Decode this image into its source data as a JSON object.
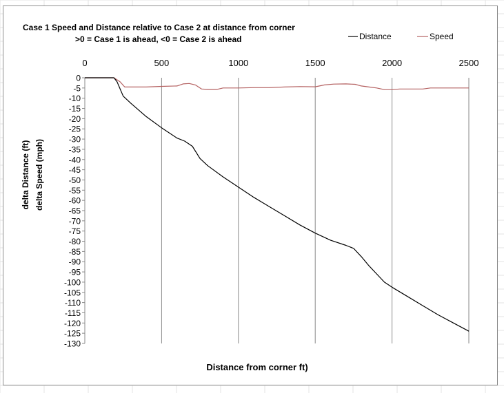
{
  "chart_data": {
    "type": "line",
    "title_line1": "Case 1 Speed and Distance relative to Case 2 at distance from corner",
    "title_line2": ">0 = Case 1 is ahead,  <0 = Case 2 is ahead",
    "xlabel": "Distance from corner  ft)",
    "ylabel_line1": "delta Distance (ft)",
    "ylabel_line2": "delta Speed  (mph)",
    "xlim": [
      0,
      2500
    ],
    "ylim": [
      -130,
      0
    ],
    "x_ticks": [
      0,
      500,
      1000,
      1500,
      2000,
      2500
    ],
    "y_ticks": [
      0,
      -5,
      -10,
      -15,
      -20,
      -25,
      -30,
      -35,
      -40,
      -45,
      -50,
      -55,
      -60,
      -65,
      -70,
      -75,
      -80,
      -85,
      -90,
      -95,
      -100,
      -105,
      -110,
      -115,
      -120,
      -125,
      -130
    ],
    "x_axis_position": "top",
    "grid": "vertical",
    "legend_position": "top-right",
    "series": [
      {
        "name": "Distance",
        "color": "#000000",
        "x": [
          0,
          190,
          210,
          250,
          300,
          400,
          500,
          600,
          650,
          700,
          750,
          800,
          900,
          1000,
          1100,
          1200,
          1300,
          1400,
          1500,
          1600,
          1700,
          1750,
          1800,
          1850,
          1900,
          1950,
          2000,
          2100,
          2200,
          2300,
          2400,
          2500
        ],
        "y": [
          0,
          0,
          -2,
          -9,
          -12.5,
          -19,
          -24.5,
          -29.5,
          -31,
          -33.5,
          -39.5,
          -43,
          -48.5,
          -53.5,
          -58.5,
          -63,
          -67.5,
          -72,
          -76,
          -79.5,
          -82,
          -83.5,
          -87.5,
          -92,
          -96,
          -100,
          -102.5,
          -107,
          -111.5,
          -116,
          -120,
          -124
        ]
      },
      {
        "name": "Speed",
        "color": "#b46060",
        "x": [
          0,
          190,
          230,
          260,
          300,
          400,
          500,
          600,
          640,
          680,
          720,
          760,
          800,
          860,
          900,
          1000,
          1100,
          1200,
          1300,
          1400,
          1500,
          1560,
          1620,
          1700,
          1760,
          1800,
          1850,
          1900,
          1950,
          2000,
          2050,
          2100,
          2200,
          2250,
          2300,
          2400,
          2500
        ],
        "y": [
          0,
          0,
          -2,
          -4.5,
          -4.5,
          -4.5,
          -4.2,
          -4,
          -3,
          -2.8,
          -3.5,
          -5.5,
          -5.7,
          -5.7,
          -5,
          -5,
          -4.8,
          -4.8,
          -4.5,
          -4.3,
          -4.4,
          -3.5,
          -3.1,
          -3,
          -3.2,
          -4,
          -4.5,
          -5,
          -5.8,
          -5.8,
          -5.5,
          -5.5,
          -5.5,
          -5,
          -5,
          -5,
          -5
        ]
      }
    ]
  }
}
